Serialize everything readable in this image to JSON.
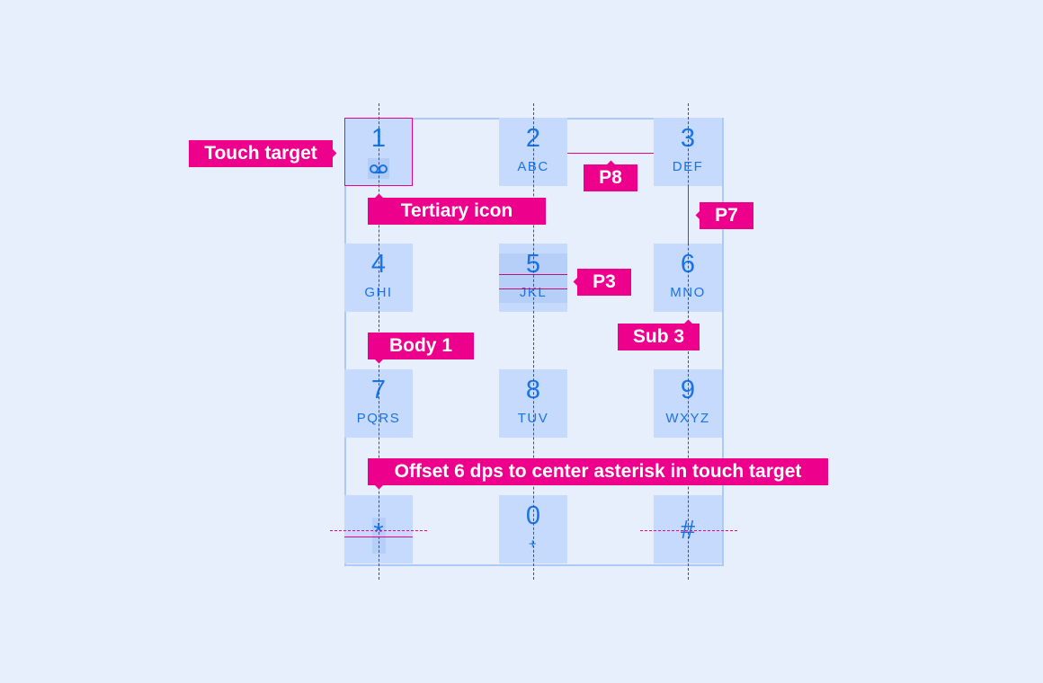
{
  "colors": {
    "background": "#e8effc",
    "key": "#c5dafc",
    "text": "#1a73e8",
    "annotation": "#ec008c"
  },
  "keys": [
    {
      "num": "1",
      "sub": "voicemail-icon"
    },
    {
      "num": "2",
      "sub": "ABC"
    },
    {
      "num": "3",
      "sub": "DEF"
    },
    {
      "num": "4",
      "sub": "GHI"
    },
    {
      "num": "5",
      "sub": "JKL"
    },
    {
      "num": "6",
      "sub": "MNO"
    },
    {
      "num": "7",
      "sub": "PQRS"
    },
    {
      "num": "8",
      "sub": "TUV"
    },
    {
      "num": "9",
      "sub": "WXYZ"
    },
    {
      "num": "*",
      "sub": ""
    },
    {
      "num": "0",
      "sub": "+"
    },
    {
      "num": "#",
      "sub": ""
    }
  ],
  "annotations": {
    "touch_target": "Touch target",
    "tertiary_icon": "Tertiary icon",
    "p8": "P8",
    "p7": "P7",
    "p3": "P3",
    "sub3": "Sub 3",
    "body1": "Body 1",
    "offset": "Offset 6 dps to center asterisk in touch target"
  }
}
